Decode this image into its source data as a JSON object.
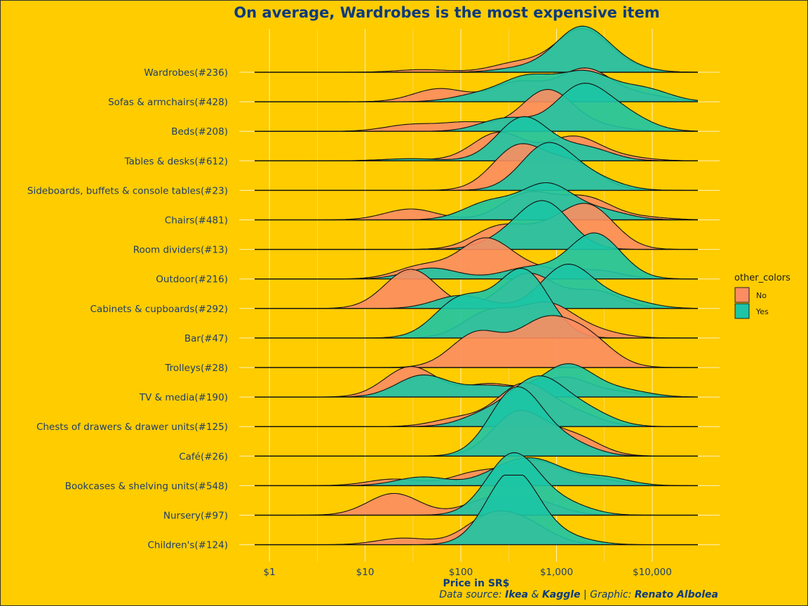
{
  "chart_data": {
    "type": "area",
    "subtype": "ridgeline-density",
    "title": "On average, Wardrobes is the most expensive item",
    "xlabel": "Price in SR$",
    "x_scale": "log10",
    "xlim": [
      0.7,
      30000
    ],
    "x_ticks": [
      1,
      10,
      100,
      1000,
      10000
    ],
    "x_tick_labels": [
      "$1",
      "$10",
      "$100",
      "$1,000",
      "$10,000"
    ],
    "legend": {
      "title": "other_colors",
      "position": "right",
      "entries": [
        {
          "name": "No",
          "color": "#FC8D62"
        },
        {
          "name": "Yes",
          "color": "#1CC5A5"
        }
      ]
    },
    "caption": {
      "prefix": "Data source: ",
      "src1": "Ikea",
      "amp": " & ",
      "src2": "Kaggle",
      "sep": " | ",
      "graphic_prefix": "Graphic: ",
      "author": "Renato Albolea"
    },
    "categories": [
      {
        "label": "Wardrobes(#236)",
        "no": [
          [
            40,
            0.06
          ],
          [
            400,
            0.22
          ],
          [
            1800,
            0.95
          ],
          [
            4500,
            0.12
          ]
        ],
        "yes": [
          [
            450,
            0.1
          ],
          [
            1800,
            1.0
          ],
          [
            4500,
            0.15
          ]
        ]
      },
      {
        "label": "Sofas & armchairs(#428)",
        "no": [
          [
            60,
            0.3
          ],
          [
            400,
            0.45
          ],
          [
            2000,
            0.75
          ],
          [
            8000,
            0.15
          ]
        ],
        "yes": [
          [
            150,
            0.15
          ],
          [
            500,
            0.55
          ],
          [
            2000,
            0.65
          ],
          [
            8000,
            0.3
          ]
        ]
      },
      {
        "label": "Beds(#208)",
        "no": [
          [
            30,
            0.15
          ],
          [
            120,
            0.2
          ],
          [
            800,
            0.95
          ],
          [
            3000,
            0.1
          ]
        ],
        "yes": [
          [
            300,
            0.3
          ],
          [
            1800,
            1.0
          ],
          [
            5000,
            0.35
          ]
        ]
      },
      {
        "label": "Tables & desks(#612)",
        "no": [
          [
            25,
            0.04
          ],
          [
            250,
            0.65
          ],
          [
            1500,
            0.55
          ],
          [
            5000,
            0.08
          ]
        ],
        "yes": [
          [
            30,
            0.05
          ],
          [
            450,
            1.0
          ],
          [
            2000,
            0.3
          ]
        ]
      },
      {
        "label": "Sideboards, buffets & console tables(#23)",
        "no": [
          [
            400,
            1.0
          ],
          [
            1500,
            0.6
          ]
        ],
        "yes": [
          [
            800,
            1.05
          ],
          [
            2500,
            0.25
          ]
        ]
      },
      {
        "label": "Chairs(#481)",
        "no": [
          [
            30,
            0.25
          ],
          [
            500,
            0.6
          ],
          [
            2000,
            0.5
          ],
          [
            8000,
            0.06
          ]
        ],
        "yes": [
          [
            200,
            0.4
          ],
          [
            800,
            0.8
          ],
          [
            3000,
            0.2
          ]
        ]
      },
      {
        "label": "Room dividers(#13)",
        "no": [
          [
            250,
            0.5
          ],
          [
            800,
            0.35
          ],
          [
            2200,
            0.95
          ]
        ],
        "yes": [
          [
            750,
            1.05
          ],
          [
            300,
            0.2
          ]
        ]
      },
      {
        "label": "Outdoor(#216)",
        "no": [
          [
            40,
            0.3
          ],
          [
            180,
            0.9
          ],
          [
            600,
            0.2
          ],
          [
            2500,
            0.2
          ]
        ],
        "yes": [
          [
            50,
            0.25
          ],
          [
            500,
            0.25
          ],
          [
            2500,
            1.05
          ]
        ]
      },
      {
        "label": "Cabinets & cupboards(#292)",
        "no": [
          [
            30,
            0.9
          ],
          [
            500,
            0.8
          ],
          [
            2500,
            0.4
          ]
        ],
        "yes": [
          [
            100,
            0.3
          ],
          [
            1300,
            1.0
          ],
          [
            5000,
            0.2
          ]
        ]
      },
      {
        "label": "Bar(#47)",
        "no": [
          [
            200,
            0.6
          ],
          [
            800,
            0.75
          ],
          [
            2500,
            0.15
          ]
        ],
        "yes": [
          [
            100,
            0.9
          ],
          [
            450,
            1.55
          ]
        ]
      },
      {
        "label": "Trolleys(#28)",
        "no": [
          [
            150,
            0.8
          ],
          [
            700,
            0.95
          ],
          [
            2000,
            0.7
          ]
        ],
        "yes": []
      },
      {
        "label": "TV & media(#190)",
        "no": [
          [
            30,
            0.7
          ],
          [
            200,
            0.3
          ],
          [
            1200,
            0.45
          ],
          [
            5000,
            0.1
          ]
        ],
        "yes": [
          [
            40,
            0.5
          ],
          [
            200,
            0.25
          ],
          [
            1300,
            0.75
          ],
          [
            5000,
            0.15
          ]
        ]
      },
      {
        "label": "Chests of drawers & drawer units(#125)",
        "no": [
          [
            100,
            0.2
          ],
          [
            450,
            0.95
          ],
          [
            1500,
            0.3
          ]
        ],
        "yes": [
          [
            200,
            0.3
          ],
          [
            650,
            1.05
          ],
          [
            2000,
            0.35
          ]
        ]
      },
      {
        "label": "Café(#26)",
        "no": [
          [
            400,
            1.0
          ],
          [
            1500,
            0.45
          ]
        ],
        "yes": [
          [
            380,
            1.55
          ],
          [
            1300,
            0.3
          ]
        ]
      },
      {
        "label": "Bookcases & shelving units(#548)",
        "no": [
          [
            20,
            0.15
          ],
          [
            150,
            0.3
          ],
          [
            600,
            0.55
          ],
          [
            2500,
            0.15
          ]
        ],
        "yes": [
          [
            40,
            0.2
          ],
          [
            300,
            0.35
          ],
          [
            700,
            0.45
          ],
          [
            3000,
            0.2
          ]
        ]
      },
      {
        "label": "Nursery(#97)",
        "no": [
          [
            20,
            0.5
          ],
          [
            200,
            0.35
          ],
          [
            600,
            0.3
          ]
        ],
        "yes": [
          [
            350,
            1.4
          ],
          [
            1200,
            0.25
          ]
        ]
      },
      {
        "label": "Children's(#124)",
        "no": [
          [
            25,
            0.15
          ],
          [
            200,
            0.6
          ],
          [
            500,
            0.4
          ]
        ],
        "yes": [
          [
            350,
            1.7
          ],
          [
            1300,
            0.15
          ]
        ]
      }
    ]
  }
}
